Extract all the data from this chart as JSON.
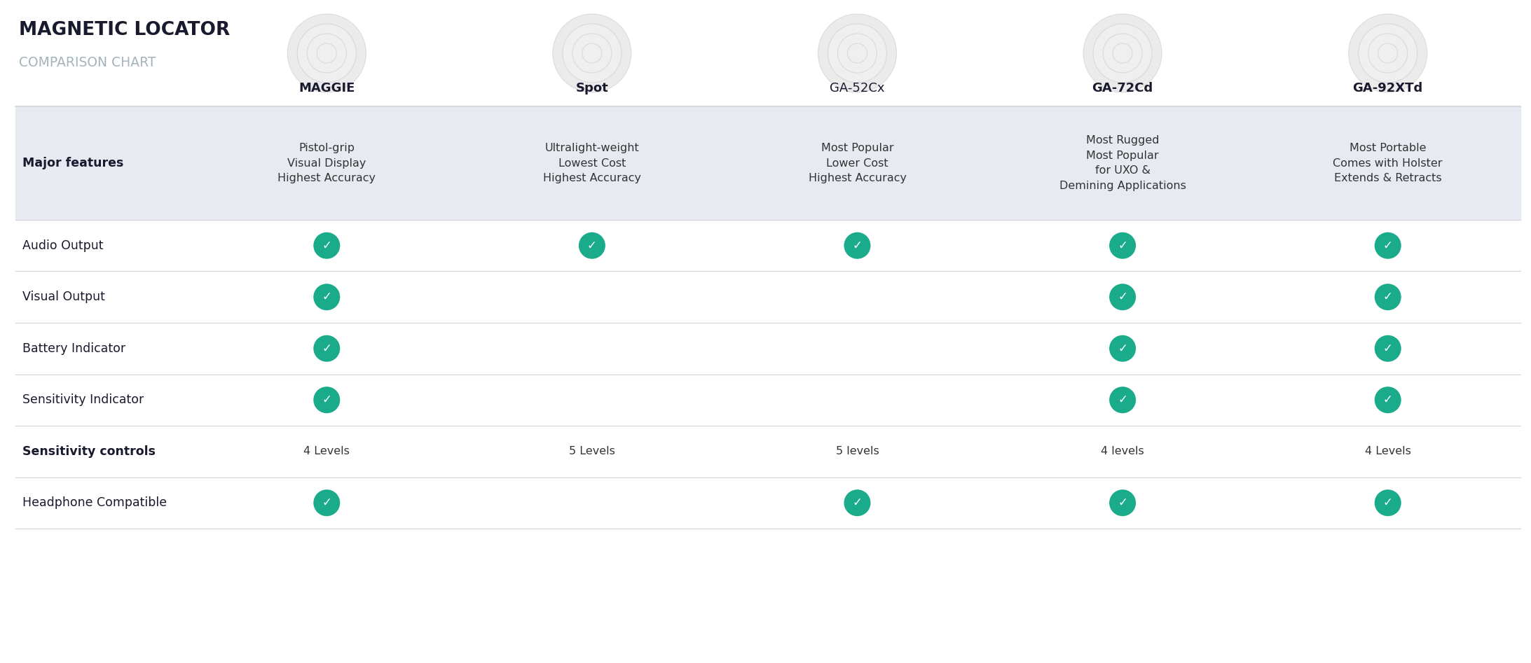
{
  "title_line1": "MAGNETIC LOCATOR",
  "title_line2": "COMPARISON CHART",
  "products": [
    "MAGGIE",
    "Spot",
    "GA-52Cx",
    "GA-72Cd",
    "GA-92XTd"
  ],
  "product_bold": [
    true,
    true,
    false,
    true,
    true
  ],
  "rows": [
    {
      "label": "Major features",
      "label_bold": true,
      "bg": "#e8eaf2",
      "type": "text",
      "values": [
        "Pistol-grip\nVisual Display\nHighest Accuracy",
        "Ultralight-weight\nLowest Cost\nHighest Accuracy",
        "Most Popular\nLower Cost\nHighest Accuracy",
        "Most Rugged\nMost Popular\nfor UXO &\nDemining Applications",
        "Most Portable\nComes with Holster\nExtends & Retracts"
      ]
    },
    {
      "label": "Audio Output",
      "label_bold": false,
      "bg": "#ffffff",
      "type": "check",
      "values": [
        true,
        true,
        true,
        true,
        true
      ]
    },
    {
      "label": "Visual Output",
      "label_bold": false,
      "bg": "#ffffff",
      "type": "check",
      "values": [
        true,
        false,
        false,
        true,
        true
      ]
    },
    {
      "label": "Battery Indicator",
      "label_bold": false,
      "bg": "#ffffff",
      "type": "check",
      "values": [
        true,
        false,
        false,
        true,
        true
      ]
    },
    {
      "label": "Sensitivity Indicator",
      "label_bold": false,
      "bg": "#ffffff",
      "type": "check",
      "values": [
        true,
        false,
        false,
        true,
        true
      ]
    },
    {
      "label": "Sensitivity controls",
      "label_bold": true,
      "bg": "#ffffff",
      "type": "text",
      "values": [
        "4 Levels",
        "5 Levels",
        "5 levels",
        "4 levels",
        "4 Levels"
      ]
    },
    {
      "label": "Headphone Compatible",
      "label_bold": false,
      "bg": "#ffffff",
      "type": "check",
      "values": [
        true,
        false,
        true,
        true,
        true
      ]
    }
  ],
  "check_color": "#1aab8a",
  "label_color": "#1a1a2e",
  "title_color1": "#1a1a2e",
  "title_color2": "#9aabb5",
  "bg_color": "#ffffff",
  "header_bg": "#e8eaf2",
  "divider_color": "#d0d4dc",
  "text_color": "#333333",
  "img_circle_color": "#d0d4dc"
}
